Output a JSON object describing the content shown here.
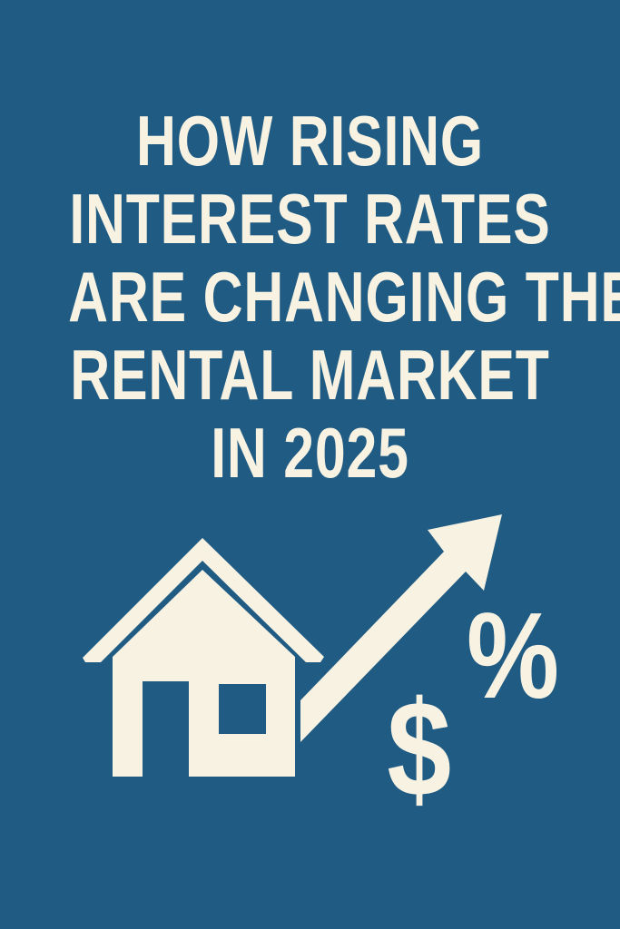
{
  "title": {
    "lines": [
      "HOW RISING",
      "INTEREST RATES",
      "ARE CHANGING THE",
      "RENTAL MARKET",
      "IN 2025"
    ]
  },
  "illustration": {
    "icons": [
      "house-icon",
      "rising-arrow-icon",
      "percent-sign",
      "dollar-sign"
    ],
    "percent_symbol": "%",
    "dollar_symbol": "$"
  },
  "colors": {
    "background": "#1f5b83",
    "foreground": "#f7f2e2"
  }
}
